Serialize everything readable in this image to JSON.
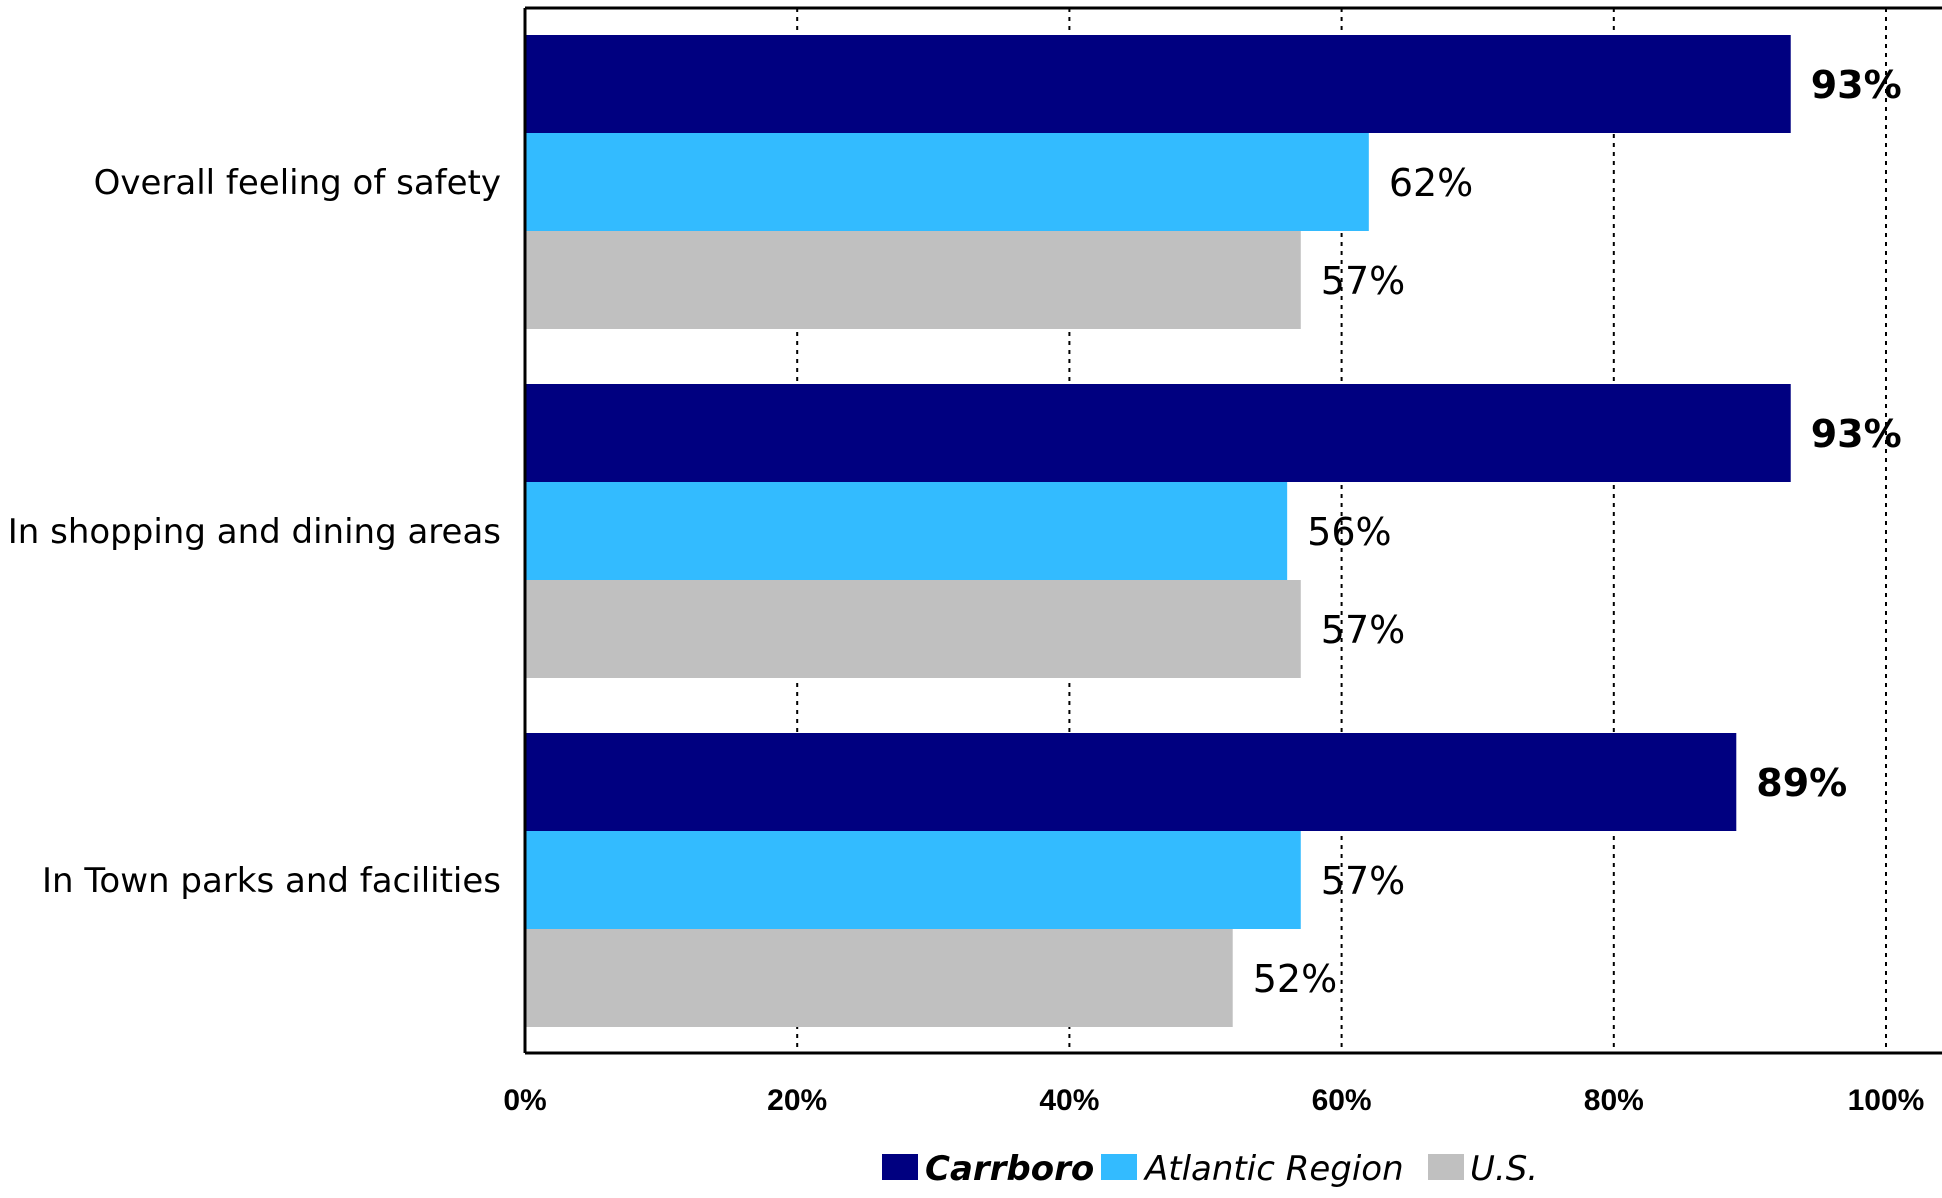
{
  "chart_data": {
    "type": "bar",
    "orientation": "horizontal",
    "categories": [
      "Overall feeling of safety",
      "In shopping and dining areas",
      "In Town parks and facilities"
    ],
    "series": [
      {
        "name": "Carrboro",
        "color": "#000080",
        "values": [
          93,
          93,
          89
        ],
        "labels": [
          "93%",
          "93%",
          "89%"
        ],
        "label_bold": true,
        "legend_bold": true
      },
      {
        "name": "Atlantic Region",
        "color": "#33BBFF",
        "values": [
          62,
          56,
          57
        ],
        "labels": [
          "62%",
          "56%",
          "57%"
        ],
        "label_bold": false,
        "legend_bold": false
      },
      {
        "name": "U.S.",
        "color": "#C0C0C0",
        "values": [
          57,
          57,
          52
        ],
        "labels": [
          "57%",
          "57%",
          "52%"
        ],
        "label_bold": false,
        "legend_bold": false
      }
    ],
    "x_ticks": [
      "0%",
      "20%",
      "40%",
      "60%",
      "80%",
      "100%"
    ],
    "xlim": [
      0,
      100
    ],
    "grid": "vertical dotted",
    "legend_position": "bottom",
    "title": "",
    "xlabel": "",
    "ylabel": ""
  }
}
